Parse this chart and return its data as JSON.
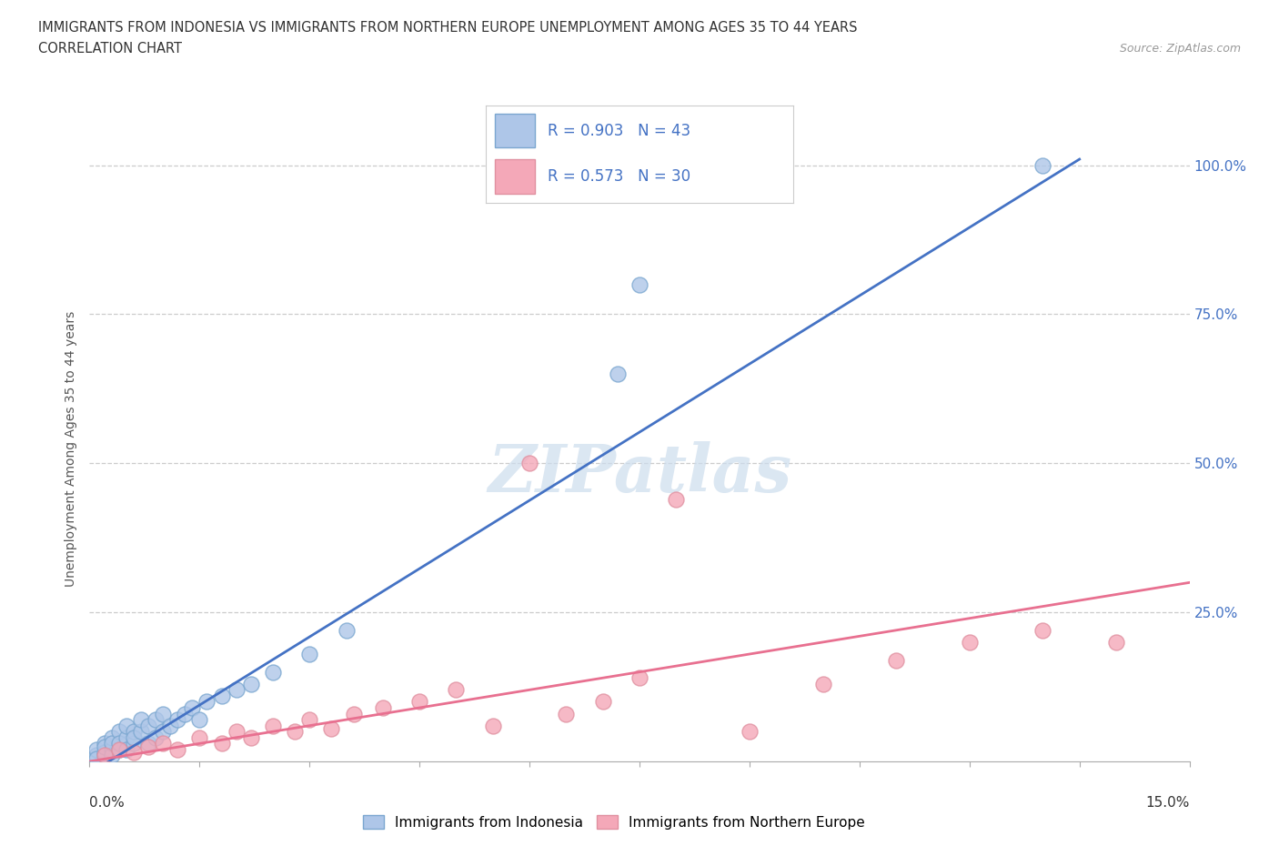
{
  "title_line1": "IMMIGRANTS FROM INDONESIA VS IMMIGRANTS FROM NORTHERN EUROPE UNEMPLOYMENT AMONG AGES 35 TO 44 YEARS",
  "title_line2": "CORRELATION CHART",
  "source": "Source: ZipAtlas.com",
  "ylabel": "Unemployment Among Ages 35 to 44 years",
  "blue_scatter_x": [
    0.001,
    0.001,
    0.001,
    0.002,
    0.002,
    0.002,
    0.002,
    0.003,
    0.003,
    0.003,
    0.003,
    0.004,
    0.004,
    0.004,
    0.005,
    0.005,
    0.005,
    0.006,
    0.006,
    0.006,
    0.007,
    0.007,
    0.008,
    0.008,
    0.009,
    0.009,
    0.01,
    0.01,
    0.011,
    0.012,
    0.013,
    0.014,
    0.015,
    0.016,
    0.018,
    0.02,
    0.022,
    0.025,
    0.03,
    0.035,
    0.072,
    0.075,
    0.13
  ],
  "blue_scatter_y": [
    0.01,
    0.02,
    0.005,
    0.01,
    0.03,
    0.015,
    0.025,
    0.02,
    0.04,
    0.01,
    0.03,
    0.02,
    0.05,
    0.03,
    0.04,
    0.02,
    0.06,
    0.03,
    0.05,
    0.04,
    0.05,
    0.07,
    0.06,
    0.03,
    0.07,
    0.04,
    0.08,
    0.05,
    0.06,
    0.07,
    0.08,
    0.09,
    0.07,
    0.1,
    0.11,
    0.12,
    0.13,
    0.15,
    0.18,
    0.22,
    0.65,
    0.8,
    1.0
  ],
  "pink_scatter_x": [
    0.002,
    0.004,
    0.006,
    0.008,
    0.01,
    0.012,
    0.015,
    0.018,
    0.02,
    0.022,
    0.025,
    0.028,
    0.03,
    0.033,
    0.036,
    0.04,
    0.045,
    0.05,
    0.055,
    0.06,
    0.065,
    0.07,
    0.075,
    0.08,
    0.09,
    0.1,
    0.11,
    0.12,
    0.13,
    0.14
  ],
  "pink_scatter_y": [
    0.01,
    0.02,
    0.015,
    0.025,
    0.03,
    0.02,
    0.04,
    0.03,
    0.05,
    0.04,
    0.06,
    0.05,
    0.07,
    0.055,
    0.08,
    0.09,
    0.1,
    0.12,
    0.06,
    0.5,
    0.08,
    0.1,
    0.14,
    0.44,
    0.05,
    0.13,
    0.17,
    0.2,
    0.22,
    0.2
  ],
  "blue_line_x0": 0.0,
  "blue_line_y0": -0.02,
  "blue_line_x1": 0.135,
  "blue_line_y1": 1.01,
  "pink_line_x0": 0.0,
  "pink_line_y0": 0.0,
  "pink_line_x1": 0.15,
  "pink_line_y1": 0.3,
  "blue_line_color": "#4472c4",
  "pink_line_color": "#e87090",
  "blue_scatter_color": "#aec6e8",
  "pink_scatter_color": "#f4a8b8",
  "blue_scatter_edge": "#7ba7d0",
  "pink_scatter_edge": "#e090a0",
  "watermark_text": "ZIPatlas",
  "watermark_color": "#ccdded",
  "background_color": "#ffffff",
  "grid_color": "#cccccc",
  "title_color": "#333333",
  "right_axis_color": "#4472c4",
  "legend_text_color": "#4472c4",
  "legend_r1": "R = 0.903   N = 43",
  "legend_r2": "R = 0.573   N = 30",
  "bottom_label1": "Immigrants from Indonesia",
  "bottom_label2": "Immigrants from Northern Europe",
  "xlim": [
    0.0,
    0.15
  ],
  "ylim": [
    0.0,
    1.05
  ],
  "ytick_values": [
    0.25,
    0.5,
    0.75,
    1.0
  ],
  "ytick_labels": [
    "25.0%",
    "50.0%",
    "75.0%",
    "100.0%"
  ]
}
